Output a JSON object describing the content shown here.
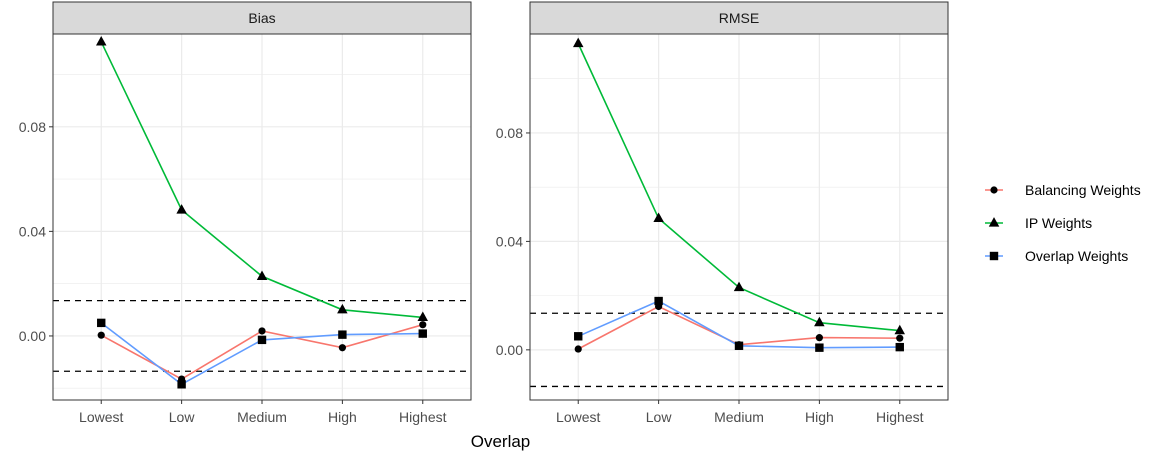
{
  "chart_data": {
    "type": "line",
    "xlabel": "Overlap",
    "categories": [
      "Lowest",
      "Low",
      "Medium",
      "High",
      "Highest"
    ],
    "legend_position": "right",
    "grid": true,
    "reference_lines": [
      -0.0135,
      0.0135
    ],
    "colors": {
      "Balancing Weights": "#f8766d",
      "IP Weights": "#00ba38",
      "Overlap Weights": "#619cff",
      "strip_fill": "#d9d9d9",
      "grid": "#ebebeb"
    },
    "markers": {
      "Balancing Weights": "circle",
      "IP Weights": "triangle",
      "Overlap Weights": "square"
    },
    "legend": [
      "Balancing Weights",
      "IP Weights",
      "Overlap Weights"
    ],
    "panels": [
      {
        "title": "Bias",
        "ylim": [
          -0.0245,
          0.1155
        ],
        "yticks": [
          0.0,
          0.04,
          0.08
        ],
        "ytick_labels": [
          "0.00",
          "0.04",
          "0.08"
        ],
        "series": [
          {
            "name": "Balancing Weights",
            "values": [
              0.0003,
              -0.0165,
              0.0019,
              -0.0045,
              0.0043
            ]
          },
          {
            "name": "IP Weights",
            "values": [
              0.1125,
              0.0482,
              0.0228,
              0.01,
              0.0071
            ]
          },
          {
            "name": "Overlap Weights",
            "values": [
              0.005,
              -0.0185,
              -0.0015,
              0.0005,
              0.0009
            ]
          }
        ]
      },
      {
        "title": "RMSE",
        "ylim": [
          -0.0185,
          0.1165
        ],
        "yticks": [
          0.0,
          0.04,
          0.08
        ],
        "ytick_labels": [
          "0.00",
          "0.04",
          "0.08"
        ],
        "series": [
          {
            "name": "Balancing Weights",
            "values": [
              0.0003,
              0.016,
              0.0019,
              0.0045,
              0.0043
            ]
          },
          {
            "name": "IP Weights",
            "values": [
              0.113,
              0.0485,
              0.023,
              0.01,
              0.0071
            ]
          },
          {
            "name": "Overlap Weights",
            "values": [
              0.005,
              0.018,
              0.0015,
              0.0008,
              0.001
            ]
          }
        ]
      }
    ]
  }
}
